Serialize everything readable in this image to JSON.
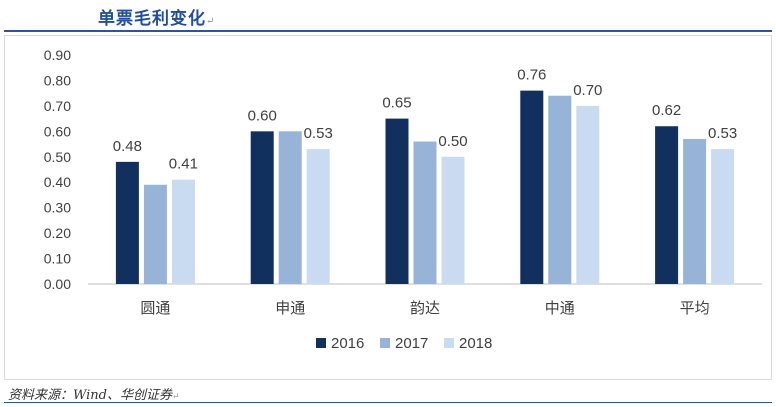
{
  "header": {
    "title": "单票毛利变化",
    "mark": "↵"
  },
  "footer": {
    "source": "资料来源：Wind、华创证券",
    "mark": "↵"
  },
  "colors": {
    "s2016": "#12305e",
    "s2017": "#98b3d8",
    "s2018": "#c9dbf1",
    "axis": "#bfbfbf",
    "text": "#404040"
  },
  "chart_data": {
    "type": "bar",
    "categories": [
      "圆通",
      "申通",
      "韵达",
      "中通",
      "平均"
    ],
    "series": [
      {
        "name": "2016",
        "values": [
          0.48,
          0.6,
          0.65,
          0.76,
          0.62
        ],
        "labels": [
          "0.48",
          "0.60",
          "0.65",
          "0.76",
          "0.62"
        ]
      },
      {
        "name": "2017",
        "values": [
          0.39,
          0.6,
          0.56,
          0.74,
          0.57
        ],
        "labels": [
          null,
          null,
          null,
          null,
          null
        ]
      },
      {
        "name": "2018",
        "values": [
          0.41,
          0.53,
          0.5,
          0.7,
          0.53
        ],
        "labels": [
          "0.41",
          "0.53",
          "0.50",
          "0.70",
          "0.53"
        ]
      }
    ],
    "ylim": [
      0,
      0.9
    ],
    "yticks": [
      "0.00",
      "0.10",
      "0.20",
      "0.30",
      "0.40",
      "0.50",
      "0.60",
      "0.70",
      "0.80",
      "0.90"
    ],
    "legend_position": "bottom",
    "grid": false
  }
}
